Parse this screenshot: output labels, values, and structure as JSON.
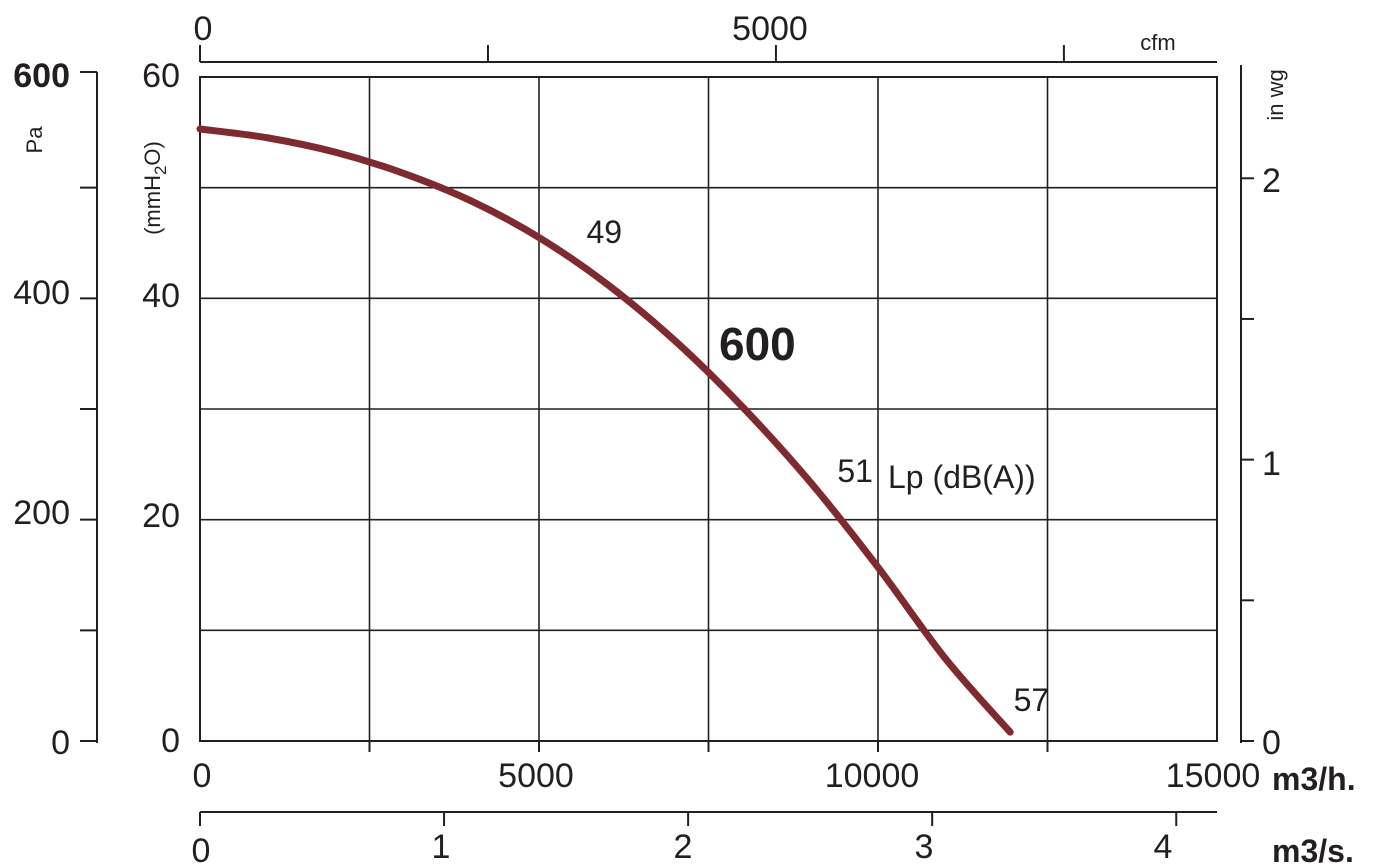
{
  "colors": {
    "curve": "#7f2a2e",
    "ink": "#231f20",
    "background": "#ffffff"
  },
  "chart_data": {
    "type": "line",
    "title": "",
    "model_label": "600",
    "annotation_label": "Lp (dB(A))",
    "x_axis_m3h": {
      "unit_label": "m3/h.",
      "range": [
        0,
        15000
      ],
      "tick_labels": [
        "0",
        "5000",
        "10000",
        "15000"
      ]
    },
    "x_axis_m3s": {
      "unit_label": "m3/s.",
      "range": [
        0,
        4.167
      ],
      "tick_labels": [
        "0",
        "1",
        "2",
        "3",
        "4"
      ]
    },
    "x_axis_cfm": {
      "unit_label": "cfm",
      "range": [
        0,
        8829
      ],
      "tick_labels": [
        "0",
        "5000"
      ]
    },
    "y_axis_mmH2O": {
      "unit_label": "(mmH2O)",
      "range": [
        0,
        60
      ],
      "tick_labels": [
        "0",
        "20",
        "40",
        "60"
      ]
    },
    "y_axis_Pa": {
      "unit_label": "Pa",
      "range": [
        0,
        600
      ],
      "tick_labels": [
        "0",
        "200",
        "400",
        "600"
      ]
    },
    "y_axis_inwg": {
      "unit_label": "in wg",
      "range": [
        0,
        2.36
      ],
      "tick_labels": [
        "0",
        "1",
        "2"
      ]
    },
    "grid": true,
    "series": [
      {
        "name": "600",
        "x_m3h": [
          0,
          1000,
          2000,
          3000,
          4000,
          5000,
          6000,
          7000,
          8000,
          9000,
          10000,
          11000,
          11950
        ],
        "y_mmH2O": [
          55.3,
          54.5,
          53.2,
          51.3,
          48.8,
          45.5,
          41.3,
          36.2,
          30.2,
          23.4,
          15.7,
          7.4,
          0.8
        ]
      }
    ],
    "noise_labels": [
      {
        "text": "49",
        "x_m3h": 5700,
        "y_mmH2O": 45
      },
      {
        "text": "51",
        "x_m3h": 9400,
        "y_mmH2O": 23.4
      },
      {
        "text": "57",
        "x_m3h": 12000,
        "y_mmH2O": 2.7
      }
    ]
  }
}
